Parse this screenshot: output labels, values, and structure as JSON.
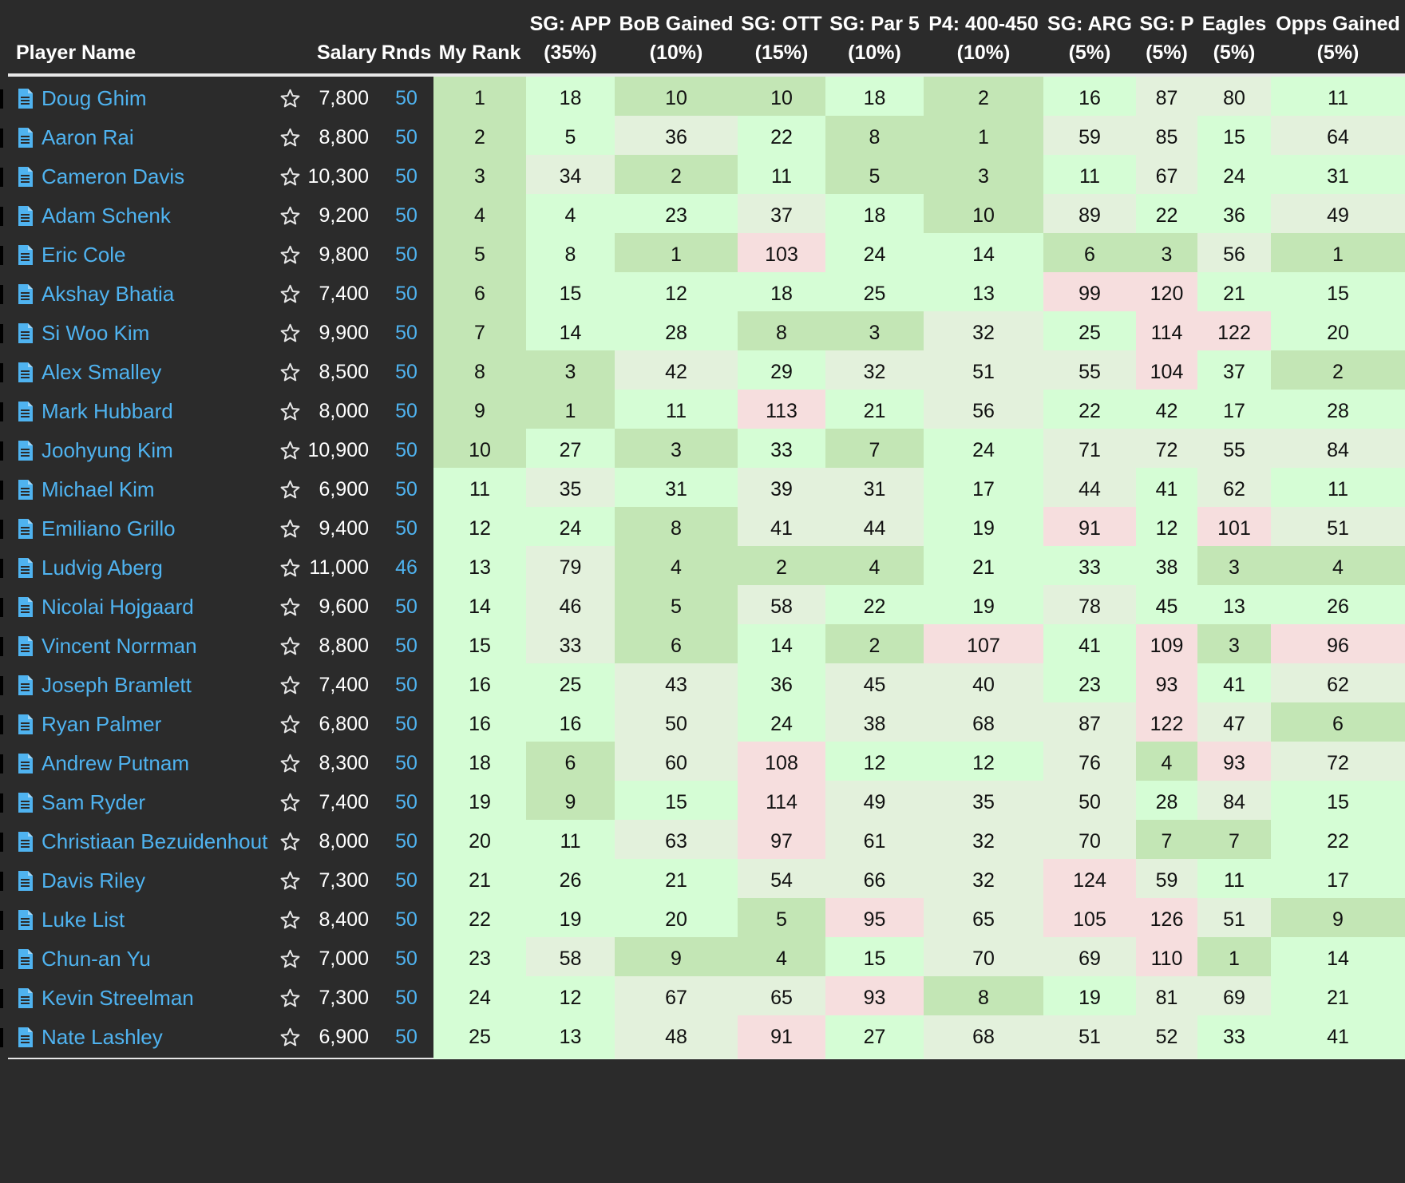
{
  "headers": {
    "player": "Player Name",
    "salary": "Salary",
    "rnds": "Rnds",
    "rank": "My Rank",
    "stats": [
      {
        "l1": "SG: APP",
        "l2": "(35%)"
      },
      {
        "l1": "BoB Gained",
        "l2": "(10%)"
      },
      {
        "l1": "SG: OTT",
        "l2": "(15%)"
      },
      {
        "l1": "SG: Par 5",
        "l2": "(10%)"
      },
      {
        "l1": "P4: 400-450",
        "l2": "(10%)"
      },
      {
        "l1": "SG: ARG",
        "l2": "(5%)"
      },
      {
        "l1": "SG: P",
        "l2": "(5%)"
      },
      {
        "l1": "Eagles",
        "l2": "(5%)"
      },
      {
        "l1": "Opps Gained",
        "l2": "(5%)"
      }
    ]
  },
  "colors": {
    "dark_green": "#c3e6b5",
    "light_green": "#d5fdd5",
    "pale_green": "#e3f1dc",
    "pink": "#f6dede",
    "name_blue": "#4fb3f0"
  },
  "icons": {
    "document": "document-icon",
    "favorite": "star-outline-icon"
  },
  "rows": [
    {
      "name": "Doug Ghim",
      "salary": "7,800",
      "rnds": "50",
      "rank": "1",
      "stats": [
        "18",
        "10",
        "10",
        "18",
        "2",
        "16",
        "87",
        "80",
        "11"
      ],
      "shade": [
        "d",
        "l",
        "d",
        "d",
        "l",
        "d",
        "l",
        "p",
        "p",
        "l"
      ]
    },
    {
      "name": "Aaron Rai",
      "salary": "8,800",
      "rnds": "50",
      "rank": "2",
      "stats": [
        "5",
        "36",
        "22",
        "8",
        "1",
        "59",
        "85",
        "15",
        "64"
      ],
      "shade": [
        "d",
        "l",
        "p",
        "l",
        "d",
        "d",
        "p",
        "p",
        "l",
        "p"
      ]
    },
    {
      "name": "Cameron Davis",
      "salary": "10,300",
      "rnds": "50",
      "rank": "3",
      "stats": [
        "34",
        "2",
        "11",
        "5",
        "3",
        "11",
        "67",
        "24",
        "31"
      ],
      "shade": [
        "d",
        "p",
        "d",
        "l",
        "d",
        "d",
        "l",
        "p",
        "l",
        "l"
      ]
    },
    {
      "name": "Adam Schenk",
      "salary": "9,200",
      "rnds": "50",
      "rank": "4",
      "stats": [
        "4",
        "23",
        "37",
        "18",
        "10",
        "89",
        "22",
        "36",
        "49"
      ],
      "shade": [
        "d",
        "l",
        "l",
        "p",
        "l",
        "d",
        "p",
        "l",
        "l",
        "p"
      ]
    },
    {
      "name": "Eric Cole",
      "salary": "9,800",
      "rnds": "50",
      "rank": "5",
      "stats": [
        "8",
        "1",
        "103",
        "24",
        "14",
        "6",
        "3",
        "56",
        "1"
      ],
      "shade": [
        "d",
        "l",
        "d",
        "k",
        "l",
        "l",
        "d",
        "d",
        "p",
        "d"
      ]
    },
    {
      "name": "Akshay Bhatia",
      "salary": "7,400",
      "rnds": "50",
      "rank": "6",
      "stats": [
        "15",
        "12",
        "18",
        "25",
        "13",
        "99",
        "120",
        "21",
        "15"
      ],
      "shade": [
        "d",
        "l",
        "l",
        "l",
        "l",
        "l",
        "k",
        "k",
        "l",
        "l"
      ]
    },
    {
      "name": "Si Woo Kim",
      "salary": "9,900",
      "rnds": "50",
      "rank": "7",
      "stats": [
        "14",
        "28",
        "8",
        "3",
        "32",
        "25",
        "114",
        "122",
        "20"
      ],
      "shade": [
        "d",
        "l",
        "l",
        "d",
        "d",
        "p",
        "l",
        "k",
        "k",
        "l"
      ]
    },
    {
      "name": "Alex Smalley",
      "salary": "8,500",
      "rnds": "50",
      "rank": "8",
      "stats": [
        "3",
        "42",
        "29",
        "32",
        "51",
        "55",
        "104",
        "37",
        "2"
      ],
      "shade": [
        "d",
        "d",
        "p",
        "l",
        "p",
        "p",
        "p",
        "k",
        "l",
        "d"
      ]
    },
    {
      "name": "Mark Hubbard",
      "salary": "8,000",
      "rnds": "50",
      "rank": "9",
      "stats": [
        "1",
        "11",
        "113",
        "21",
        "56",
        "22",
        "42",
        "17",
        "28"
      ],
      "shade": [
        "d",
        "d",
        "l",
        "k",
        "l",
        "p",
        "l",
        "l",
        "l",
        "l"
      ]
    },
    {
      "name": "Joohyung Kim",
      "salary": "10,900",
      "rnds": "50",
      "rank": "10",
      "stats": [
        "27",
        "3",
        "33",
        "7",
        "24",
        "71",
        "72",
        "55",
        "84"
      ],
      "shade": [
        "d",
        "l",
        "d",
        "l",
        "d",
        "l",
        "p",
        "p",
        "p",
        "p"
      ]
    },
    {
      "name": "Michael Kim",
      "salary": "6,900",
      "rnds": "50",
      "rank": "11",
      "stats": [
        "35",
        "31",
        "39",
        "31",
        "17",
        "44",
        "41",
        "62",
        "11"
      ],
      "shade": [
        "l",
        "p",
        "l",
        "p",
        "p",
        "l",
        "p",
        "l",
        "p",
        "l"
      ]
    },
    {
      "name": "Emiliano Grillo",
      "salary": "9,400",
      "rnds": "50",
      "rank": "12",
      "stats": [
        "24",
        "8",
        "41",
        "44",
        "19",
        "91",
        "12",
        "101",
        "51"
      ],
      "shade": [
        "l",
        "l",
        "d",
        "p",
        "p",
        "l",
        "k",
        "l",
        "k",
        "p"
      ]
    },
    {
      "name": "Ludvig Aberg",
      "salary": "11,000",
      "rnds": "46",
      "rank": "13",
      "stats": [
        "79",
        "4",
        "2",
        "4",
        "21",
        "33",
        "38",
        "3",
        "4"
      ],
      "shade": [
        "l",
        "p",
        "d",
        "d",
        "d",
        "l",
        "l",
        "l",
        "d",
        "d"
      ]
    },
    {
      "name": "Nicolai Hojgaard",
      "salary": "9,600",
      "rnds": "50",
      "rank": "14",
      "stats": [
        "46",
        "5",
        "58",
        "22",
        "19",
        "78",
        "45",
        "13",
        "26"
      ],
      "shade": [
        "l",
        "p",
        "d",
        "p",
        "l",
        "l",
        "p",
        "l",
        "l",
        "l"
      ]
    },
    {
      "name": "Vincent Norrman",
      "salary": "8,800",
      "rnds": "50",
      "rank": "15",
      "stats": [
        "33",
        "6",
        "14",
        "2",
        "107",
        "41",
        "109",
        "3",
        "96"
      ],
      "shade": [
        "l",
        "p",
        "d",
        "l",
        "d",
        "k",
        "l",
        "k",
        "d",
        "k"
      ]
    },
    {
      "name": "Joseph Bramlett",
      "salary": "7,400",
      "rnds": "50",
      "rank": "16",
      "stats": [
        "25",
        "43",
        "36",
        "45",
        "40",
        "23",
        "93",
        "41",
        "62"
      ],
      "shade": [
        "l",
        "l",
        "p",
        "l",
        "p",
        "p",
        "l",
        "k",
        "l",
        "p"
      ]
    },
    {
      "name": "Ryan Palmer",
      "salary": "6,800",
      "rnds": "50",
      "rank": "16",
      "stats": [
        "16",
        "50",
        "24",
        "38",
        "68",
        "87",
        "122",
        "47",
        "6"
      ],
      "shade": [
        "l",
        "l",
        "p",
        "l",
        "p",
        "p",
        "p",
        "k",
        "p",
        "d"
      ]
    },
    {
      "name": "Andrew Putnam",
      "salary": "8,300",
      "rnds": "50",
      "rank": "18",
      "stats": [
        "6",
        "60",
        "108",
        "12",
        "12",
        "76",
        "4",
        "93",
        "72"
      ],
      "shade": [
        "l",
        "d",
        "p",
        "k",
        "l",
        "l",
        "p",
        "d",
        "k",
        "p"
      ]
    },
    {
      "name": "Sam Ryder",
      "salary": "7,400",
      "rnds": "50",
      "rank": "19",
      "stats": [
        "9",
        "15",
        "114",
        "49",
        "35",
        "50",
        "28",
        "84",
        "15"
      ],
      "shade": [
        "l",
        "d",
        "l",
        "k",
        "p",
        "p",
        "p",
        "l",
        "p",
        "l"
      ]
    },
    {
      "name": "Christiaan Bezuidenhout",
      "salary": "8,000",
      "rnds": "50",
      "rank": "20",
      "stats": [
        "11",
        "63",
        "97",
        "61",
        "32",
        "70",
        "7",
        "7",
        "22"
      ],
      "shade": [
        "l",
        "l",
        "p",
        "k",
        "p",
        "p",
        "p",
        "d",
        "d",
        "l"
      ]
    },
    {
      "name": "Davis Riley",
      "salary": "7,300",
      "rnds": "50",
      "rank": "21",
      "stats": [
        "26",
        "21",
        "54",
        "66",
        "32",
        "124",
        "59",
        "11",
        "17"
      ],
      "shade": [
        "l",
        "l",
        "l",
        "p",
        "p",
        "p",
        "k",
        "p",
        "l",
        "l"
      ]
    },
    {
      "name": "Luke List",
      "salary": "8,400",
      "rnds": "50",
      "rank": "22",
      "stats": [
        "19",
        "20",
        "5",
        "95",
        "65",
        "105",
        "126",
        "51",
        "9"
      ],
      "shade": [
        "l",
        "l",
        "l",
        "d",
        "k",
        "p",
        "k",
        "k",
        "p",
        "d"
      ]
    },
    {
      "name": "Chun-an Yu",
      "salary": "7,000",
      "rnds": "50",
      "rank": "23",
      "stats": [
        "58",
        "9",
        "4",
        "15",
        "70",
        "69",
        "110",
        "1",
        "14"
      ],
      "shade": [
        "l",
        "p",
        "d",
        "d",
        "l",
        "p",
        "p",
        "k",
        "d",
        "l"
      ]
    },
    {
      "name": "Kevin Streelman",
      "salary": "7,300",
      "rnds": "50",
      "rank": "24",
      "stats": [
        "12",
        "67",
        "65",
        "93",
        "8",
        "19",
        "81",
        "69",
        "21"
      ],
      "shade": [
        "l",
        "l",
        "p",
        "p",
        "k",
        "d",
        "l",
        "p",
        "p",
        "l"
      ]
    },
    {
      "name": "Nate Lashley",
      "salary": "6,900",
      "rnds": "50",
      "rank": "25",
      "stats": [
        "13",
        "48",
        "91",
        "27",
        "68",
        "51",
        "52",
        "33",
        "41"
      ],
      "shade": [
        "l",
        "l",
        "p",
        "k",
        "l",
        "p",
        "p",
        "p",
        "l",
        "l"
      ]
    }
  ]
}
